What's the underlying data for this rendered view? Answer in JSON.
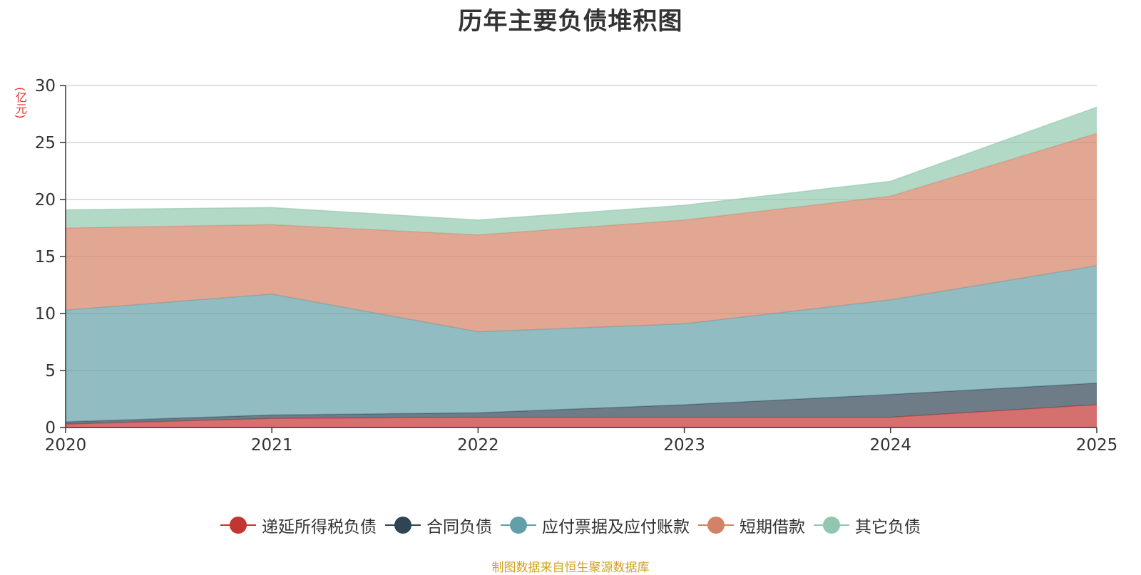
{
  "chart_data": {
    "type": "area",
    "title": "历年主要负债堆积图",
    "unit_label": "(亿元)",
    "categories": [
      "2020",
      "2021",
      "2022",
      "2023",
      "2024",
      "2025"
    ],
    "ylim": [
      0,
      30
    ],
    "yticks": [
      0,
      5,
      10,
      15,
      20,
      25,
      30
    ],
    "grid": true,
    "stacked": true,
    "legend_position": "bottom",
    "series": [
      {
        "name": "递延所得税负债",
        "color": "#c23531",
        "values": [
          0.3,
          0.8,
          0.9,
          0.9,
          0.9,
          2.0
        ]
      },
      {
        "name": "合同负债",
        "color": "#2f4554",
        "values": [
          0.2,
          0.3,
          0.4,
          1.1,
          2.0,
          1.9
        ]
      },
      {
        "name": "应付票据及应付账款",
        "color": "#61a0a8",
        "values": [
          9.8,
          10.6,
          7.1,
          7.1,
          8.3,
          10.3
        ]
      },
      {
        "name": "短期借款",
        "color": "#d48265",
        "values": [
          7.2,
          6.1,
          8.5,
          9.1,
          9.1,
          11.6
        ]
      },
      {
        "name": "其它负债",
        "color": "#91c7ae",
        "values": [
          1.6,
          1.5,
          1.3,
          1.3,
          1.3,
          2.3
        ]
      }
    ],
    "source_note": "制图数据来自恒生聚源数据库"
  }
}
